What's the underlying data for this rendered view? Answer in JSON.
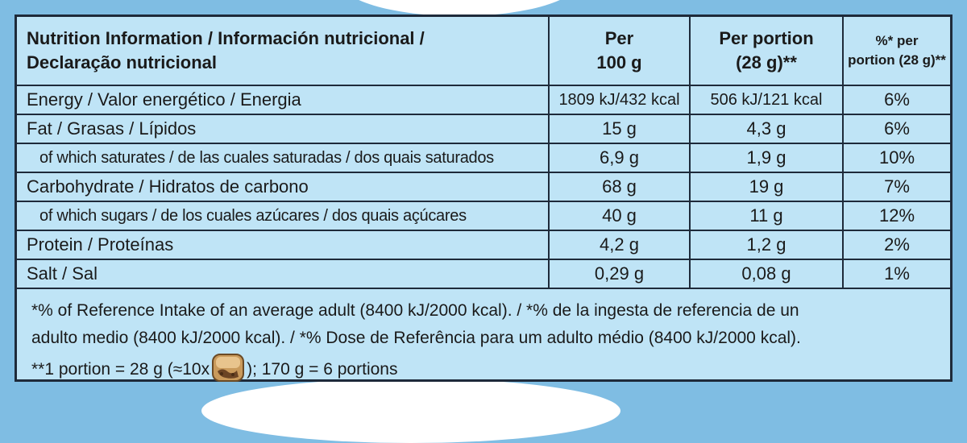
{
  "table": {
    "header": {
      "label_line1": "Nutrition Information / Información nutricional /",
      "label_line2": "Declaração nutricional",
      "per100_line1": "Per",
      "per100_line2": "100 g",
      "portion_line1": "Per portion",
      "portion_line2": "(28 g)**",
      "ri_line1": "%* per",
      "ri_line2": "portion (28 g)**"
    },
    "rows": [
      {
        "label": "Energy / Valor energético / Energia",
        "per100": "1809 kJ/432 kcal",
        "portion": "506 kJ/121 kcal",
        "ri": "6%"
      },
      {
        "label": "Fat / Grasas / Lípidos",
        "per100": "15 g",
        "portion": "4,3 g",
        "ri": "6%"
      },
      {
        "label": "of which saturates / de las cuales saturadas / dos quais saturados",
        "per100": "6,9 g",
        "portion": "1,9 g",
        "ri": "10%"
      },
      {
        "label": "Carbohydrate / Hidratos de carbono",
        "per100": "68 g",
        "portion": "19 g",
        "ri": "7%"
      },
      {
        "label": "of which sugars / de los cuales azúcares / dos quais açúcares",
        "per100": "40 g",
        "portion": "11 g",
        "ri": "12%"
      },
      {
        "label": "Protein / Proteínas",
        "per100": "4,2 g",
        "portion": "1,2 g",
        "ri": "2%"
      },
      {
        "label": "Salt / Sal",
        "per100": "0,29 g",
        "portion": "0,08 g",
        "ri": "1%"
      }
    ]
  },
  "footnote": {
    "line1": "*% of Reference Intake of an average adult (8400 kJ/2000 kcal). / *% de la ingesta de referencia de un",
    "line2": "adulto medio (8400 kJ/2000 kcal). / *% Dose de Referência para um adulto médio (8400 kJ/2000 kcal).",
    "line3_before": "**1 portion = 28 g (≈10x",
    "line3_after": "); 170 g = 6 portions",
    "icon": "chocolate-piece-icon"
  },
  "colors": {
    "background": "#7fbde3",
    "panel": "#bfe4f6",
    "border": "#1e2a3a"
  }
}
